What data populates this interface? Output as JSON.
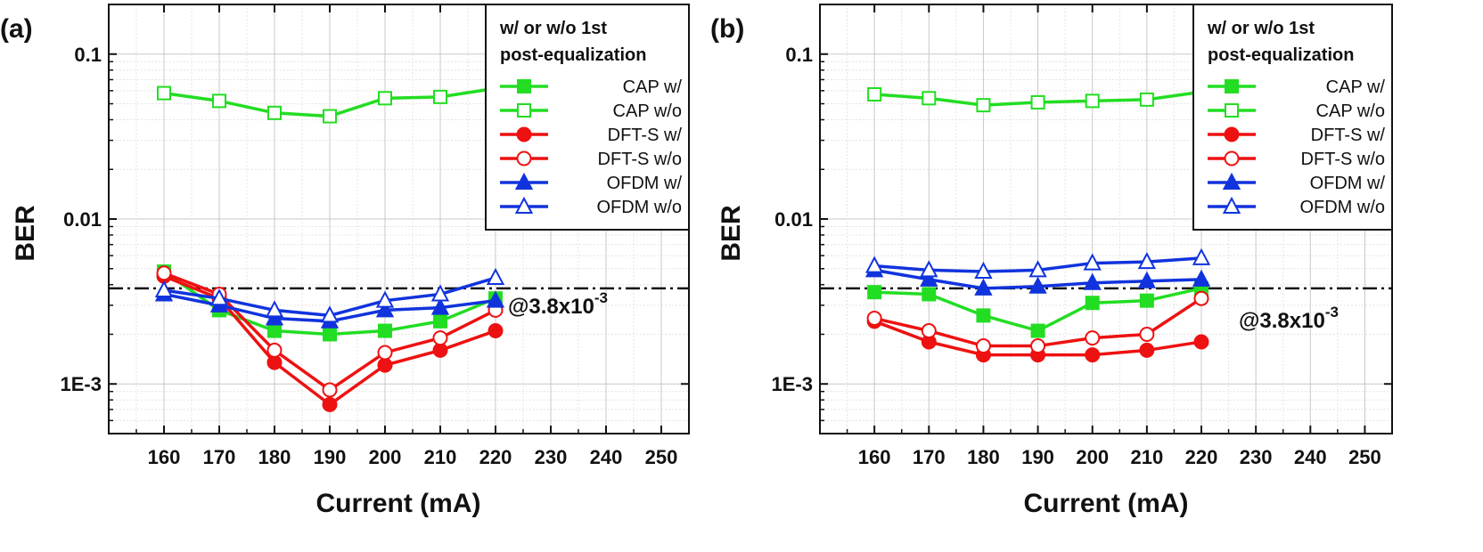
{
  "chart_data": [
    {
      "panel": "(a)",
      "type": "line",
      "xlabel": "Current (mA)",
      "ylabel": "BER",
      "yscale": "log",
      "xlim": [
        150,
        255
      ],
      "ylim": [
        0.0005,
        0.2
      ],
      "xticks": [
        160,
        170,
        180,
        190,
        200,
        210,
        220,
        230,
        240,
        250
      ],
      "xtick_labels": [
        "160",
        "170",
        "180",
        "190",
        "200",
        "210",
        "220",
        "230",
        "240",
        "250"
      ],
      "yticks": [
        0.1,
        0.01,
        0.001
      ],
      "ytick_labels": [
        "0.1",
        "0.01",
        "1E-3"
      ],
      "grid": true,
      "legend_title": [
        "w/ or w/o 1st",
        "post-equalization"
      ],
      "legend_position": "top-right",
      "threshold": {
        "value": 0.0038,
        "label": "@3.8x10",
        "exponent": "-3"
      },
      "x": [
        160,
        170,
        180,
        190,
        200,
        210,
        220
      ],
      "series": [
        {
          "name": "CAP w/",
          "color": "#22dd22",
          "marker": "square",
          "filled": true,
          "values": [
            0.0048,
            0.0028,
            0.0021,
            0.002,
            0.0021,
            0.0024,
            0.0033
          ]
        },
        {
          "name": "CAP w/o",
          "color": "#22dd22",
          "marker": "square",
          "filled": false,
          "values": [
            0.058,
            0.052,
            0.044,
            0.042,
            0.054,
            0.055,
            0.062
          ]
        },
        {
          "name": "DFT-S w/",
          "color": "#ee1111",
          "marker": "circle",
          "filled": true,
          "values": [
            0.0045,
            0.0033,
            0.00135,
            0.00075,
            0.0013,
            0.0016,
            0.0021
          ]
        },
        {
          "name": "DFT-S w/o",
          "color": "#ee1111",
          "marker": "circle",
          "filled": false,
          "values": [
            0.0047,
            0.0035,
            0.0016,
            0.00092,
            0.00155,
            0.0019,
            0.0028
          ]
        },
        {
          "name": "OFDM w/",
          "color": "#1133dd",
          "marker": "triangle",
          "filled": true,
          "values": [
            0.0035,
            0.003,
            0.0025,
            0.0024,
            0.0028,
            0.0029,
            0.0032
          ]
        },
        {
          "name": "OFDM w/o",
          "color": "#1133dd",
          "marker": "triangle",
          "filled": false,
          "values": [
            0.0037,
            0.0033,
            0.0028,
            0.0026,
            0.0032,
            0.0035,
            0.0044
          ]
        }
      ]
    },
    {
      "panel": "(b)",
      "type": "line",
      "xlabel": "Current (mA)",
      "ylabel": "BER",
      "yscale": "log",
      "xlim": [
        150,
        255
      ],
      "ylim": [
        0.0005,
        0.2
      ],
      "xticks": [
        160,
        170,
        180,
        190,
        200,
        210,
        220,
        230,
        240,
        250
      ],
      "xtick_labels": [
        "160",
        "170",
        "180",
        "190",
        "200",
        "210",
        "220",
        "230",
        "240",
        "250"
      ],
      "yticks": [
        0.1,
        0.01,
        0.001
      ],
      "ytick_labels": [
        "0.1",
        "0.01",
        "1E-3"
      ],
      "grid": true,
      "legend_title": [
        "w/ or w/o 1st",
        "post-equalization"
      ],
      "legend_position": "top-right",
      "threshold": {
        "value": 0.0038,
        "label": "@3.8x10",
        "exponent": "-3"
      },
      "x": [
        160,
        170,
        180,
        190,
        200,
        210,
        220
      ],
      "series": [
        {
          "name": "CAP w/",
          "color": "#22dd22",
          "marker": "square",
          "filled": true,
          "values": [
            0.0036,
            0.0035,
            0.0026,
            0.0021,
            0.0031,
            0.0032,
            0.0038
          ]
        },
        {
          "name": "CAP w/o",
          "color": "#22dd22",
          "marker": "square",
          "filled": false,
          "values": [
            0.057,
            0.054,
            0.049,
            0.051,
            0.052,
            0.053,
            0.059
          ]
        },
        {
          "name": "DFT-S w/",
          "color": "#ee1111",
          "marker": "circle",
          "filled": true,
          "values": [
            0.0024,
            0.0018,
            0.0015,
            0.0015,
            0.0015,
            0.0016,
            0.0018
          ]
        },
        {
          "name": "DFT-S w/o",
          "color": "#ee1111",
          "marker": "circle",
          "filled": false,
          "values": [
            0.0025,
            0.0021,
            0.0017,
            0.0017,
            0.0019,
            0.002,
            0.0033
          ]
        },
        {
          "name": "OFDM w/",
          "color": "#1133dd",
          "marker": "triangle",
          "filled": true,
          "values": [
            0.0049,
            0.0043,
            0.0038,
            0.0039,
            0.0041,
            0.0042,
            0.0043
          ]
        },
        {
          "name": "OFDM w/o",
          "color": "#1133dd",
          "marker": "triangle",
          "filled": false,
          "values": [
            0.0052,
            0.0049,
            0.0048,
            0.0049,
            0.0054,
            0.0055,
            0.0058
          ]
        }
      ]
    }
  ]
}
